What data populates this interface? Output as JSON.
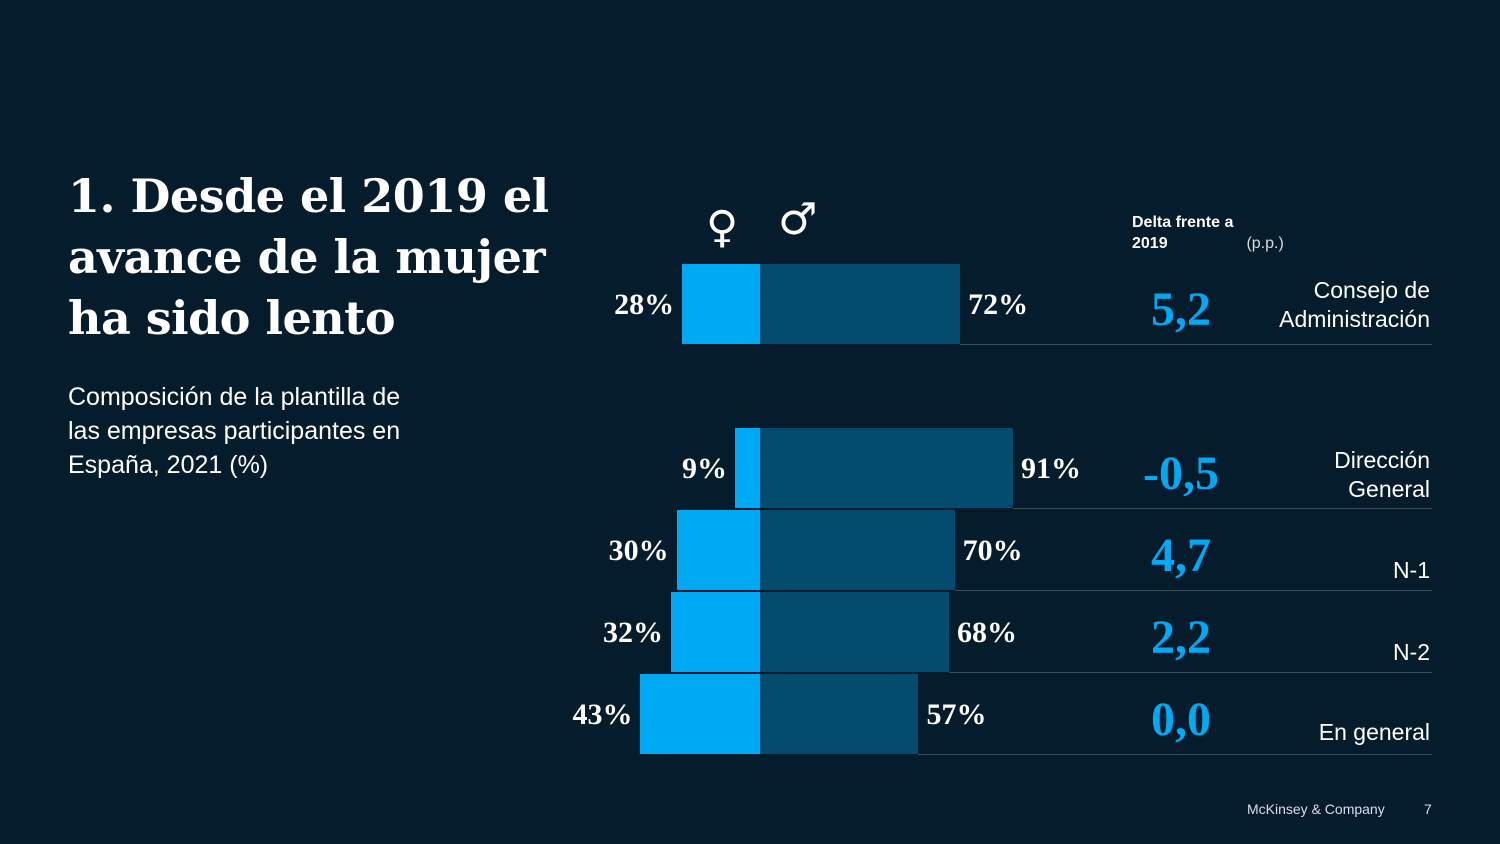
{
  "title": "1. Desde el 2019 el avance de la mujer ha sido lento",
  "subtitle": "Composición de la plantilla de las empresas participantes en España, 2021 (%)",
  "symbols": {
    "female": "♀",
    "male": "♂"
  },
  "delta_header": {
    "bold": "Delta frente a 2019",
    "unit": "(p.p.)"
  },
  "footer": {
    "company": "McKinsey & Company",
    "page": "7"
  },
  "colors": {
    "female": "#00a9f4",
    "male": "#034b6f",
    "delta": "#00a9f4",
    "background": "#051c2c"
  },
  "chart_data": {
    "type": "bar",
    "orientation": "horizontal-diverging-stacked",
    "categories": [
      "Consejo de Administración",
      "Dirección General",
      "N-1",
      "N-2",
      "En general"
    ],
    "series": [
      {
        "name": "Mujeres",
        "values": [
          28,
          9,
          30,
          32,
          43
        ],
        "labels": [
          "28%",
          "9%",
          "30%",
          "32%",
          "43%"
        ]
      },
      {
        "name": "Hombres",
        "values": [
          72,
          91,
          70,
          68,
          57
        ],
        "labels": [
          "72%",
          "91%",
          "70%",
          "68%",
          "57%"
        ]
      }
    ],
    "delta_vs_2019": [
      5.2,
      -0.5,
      4.7,
      2.2,
      0.0
    ],
    "delta_labels": [
      "5,2",
      "-0,5",
      "4,7",
      "2,2",
      "0,0"
    ],
    "unit": "%"
  }
}
